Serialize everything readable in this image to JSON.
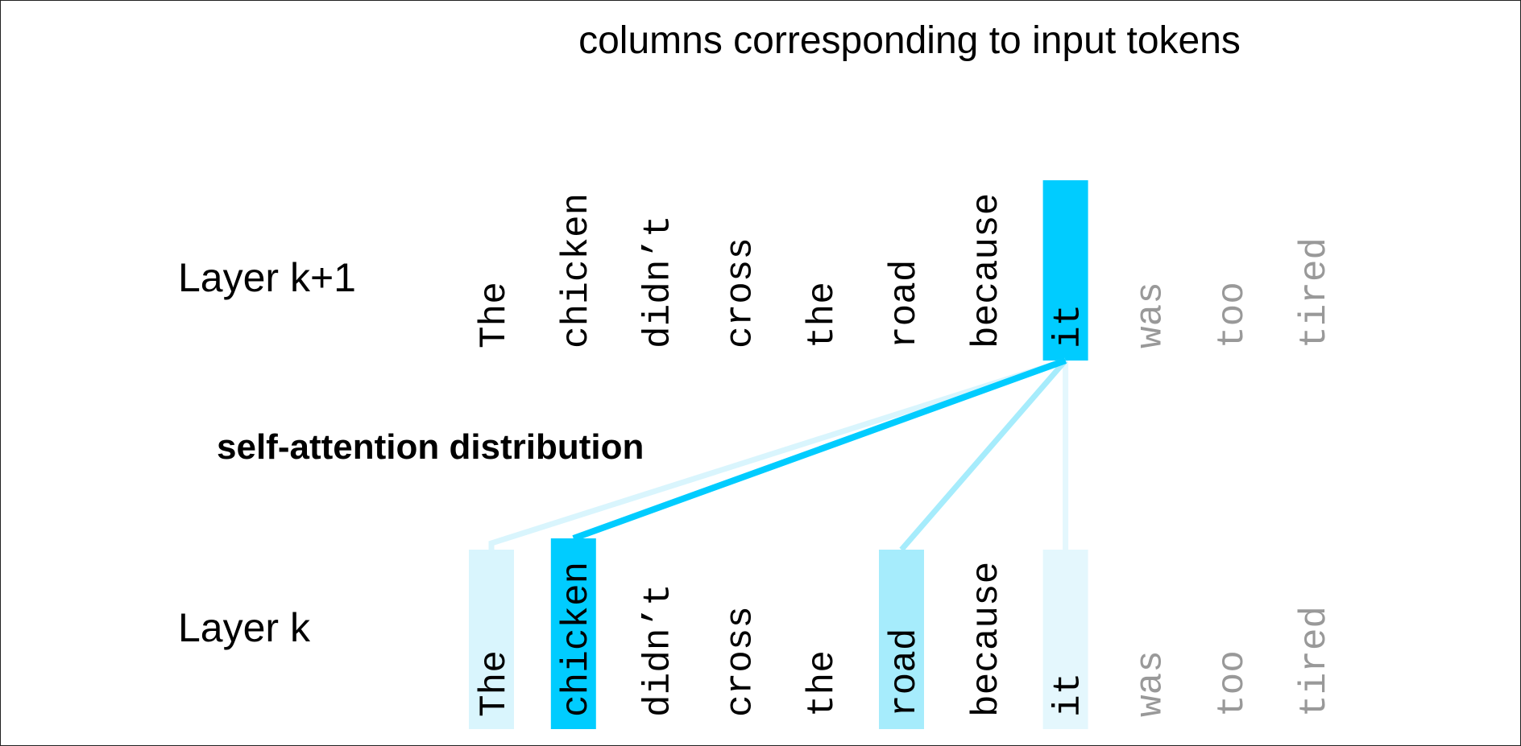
{
  "title": "columns corresponding to input tokens",
  "layer_top_label": "Layer k+1",
  "layer_bottom_label": "Layer k",
  "attention_label": "self-attention distribution",
  "tokens": [
    "The",
    "chicken",
    "didn’t",
    "cross",
    "the",
    "road",
    "because",
    "it",
    "was",
    "too",
    "tired"
  ],
  "dimmed_tokens": [
    8,
    9,
    10
  ],
  "query_token_index": 7,
  "colors": {
    "strong": "#00ccff",
    "medium": "#a6ecfc",
    "light": "#d9f5fd",
    "faint": "#e4f7fd",
    "text": "#000000",
    "dim_text": "#999999"
  },
  "attention": [
    {
      "token_index": 0,
      "level": "light"
    },
    {
      "token_index": 1,
      "level": "strong"
    },
    {
      "token_index": 5,
      "level": "medium"
    },
    {
      "token_index": 7,
      "level": "faint"
    }
  ]
}
